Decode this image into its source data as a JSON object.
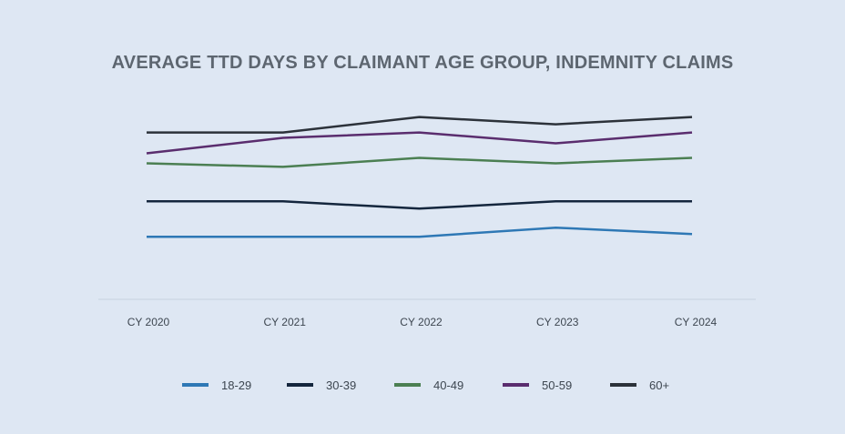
{
  "chart_data": {
    "type": "line",
    "title": "AVERAGE TTD DAYS BY CLAIMANT AGE GROUP, INDEMNITY CLAIMS",
    "xlabel": "",
    "ylabel": "",
    "categories": [
      "CY 2020",
      "CY 2021",
      "CY 2022",
      "CY 2023",
      "CY 2024"
    ],
    "series": [
      {
        "name": "18-29",
        "color": "#2e78b5",
        "values": [
          69,
          69,
          69,
          79,
          72
        ]
      },
      {
        "name": "30-39",
        "color": "#14263d",
        "values": [
          108,
          108,
          100,
          108,
          108
        ]
      },
      {
        "name": "40-49",
        "color": "#4b7f52",
        "values": [
          150,
          146,
          156,
          150,
          156
        ]
      },
      {
        "name": "50-59",
        "color": "#5a2d6e",
        "values": [
          161,
          178,
          184,
          172,
          184
        ]
      },
      {
        "name": "60+",
        "color": "#2c323a",
        "values": [
          184,
          184,
          201,
          193,
          201
        ]
      }
    ],
    "ylim": [
      0,
      330
    ],
    "grid": false,
    "legend_position": "bottom"
  }
}
